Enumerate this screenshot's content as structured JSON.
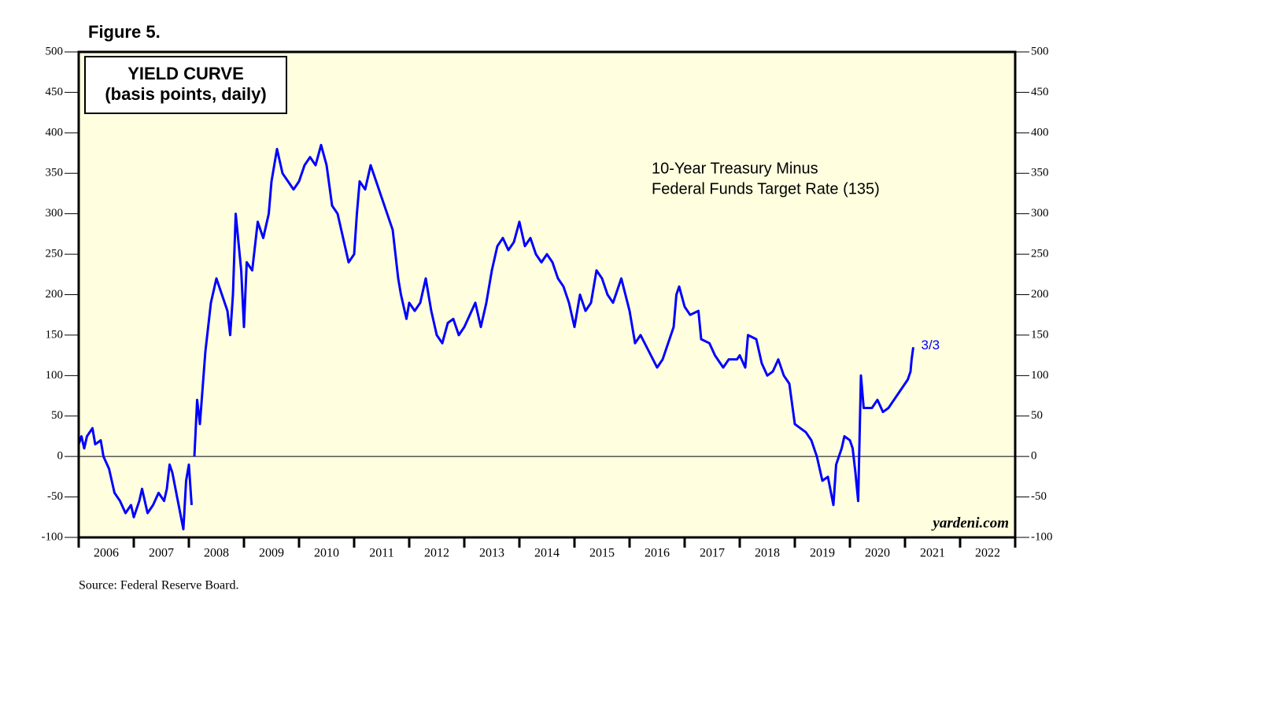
{
  "chart_data": {
    "type": "line",
    "figure_label": "Figure 5.",
    "title": "YIELD CURVE",
    "subtitle": "(basis points, daily)",
    "annotations": [
      "10-Year Treasury Minus",
      "Federal Funds Target Rate (135)"
    ],
    "end_label": "3/3",
    "watermark": "yardeni.com",
    "source": "Source: Federal Reserve Board.",
    "xlim": [
      2006,
      2023
    ],
    "xticks": [
      2006,
      2007,
      2008,
      2009,
      2010,
      2011,
      2012,
      2013,
      2014,
      2015,
      2016,
      2017,
      2018,
      2019,
      2020,
      2021,
      2022
    ],
    "ylim": [
      -100,
      500
    ],
    "yticks": [
      -100,
      -50,
      0,
      50,
      100,
      150,
      200,
      250,
      300,
      350,
      400,
      450,
      500
    ],
    "y2lim": [
      -100,
      500
    ],
    "y2ticks": [
      -100,
      -50,
      0,
      50,
      100,
      150,
      200,
      250,
      300,
      350,
      400,
      450,
      500
    ],
    "zero_line": true,
    "x": [
      2006.0,
      2006.05,
      2006.1,
      2006.15,
      2006.25,
      2006.3,
      2006.4,
      2006.45,
      2006.55,
      2006.65,
      2006.75,
      2006.85,
      2006.95,
      2007.0,
      2007.1,
      2007.15,
      2007.25,
      2007.35,
      2007.45,
      2007.55,
      2007.6,
      2007.65,
      2007.7,
      2007.8,
      2007.9,
      2007.95,
      2008.0,
      2008.05,
      2008.07,
      2008.1,
      2008.15,
      2008.2,
      2008.3,
      2008.4,
      2008.5,
      2008.6,
      2008.7,
      2008.75,
      2008.8,
      2008.85,
      2008.95,
      2009.0,
      2009.05,
      2009.15,
      2009.25,
      2009.35,
      2009.45,
      2009.5,
      2009.6,
      2009.7,
      2009.8,
      2009.9,
      2010.0,
      2010.1,
      2010.2,
      2010.3,
      2010.4,
      2010.5,
      2010.6,
      2010.7,
      2010.8,
      2010.9,
      2011.0,
      2011.05,
      2011.1,
      2011.2,
      2011.3,
      2011.4,
      2011.5,
      2011.6,
      2011.7,
      2011.8,
      2011.85,
      2011.95,
      2012.0,
      2012.1,
      2012.2,
      2012.3,
      2012.4,
      2012.5,
      2012.6,
      2012.7,
      2012.8,
      2012.9,
      2013.0,
      2013.1,
      2013.2,
      2013.3,
      2013.4,
      2013.5,
      2013.6,
      2013.7,
      2013.8,
      2013.9,
      2014.0,
      2014.1,
      2014.2,
      2014.3,
      2014.4,
      2014.5,
      2014.6,
      2014.7,
      2014.8,
      2014.9,
      2015.0,
      2015.1,
      2015.2,
      2015.3,
      2015.4,
      2015.5,
      2015.6,
      2015.7,
      2015.85,
      2016.0,
      2016.1,
      2016.2,
      2016.35,
      2016.5,
      2016.6,
      2016.7,
      2016.8,
      2016.85,
      2016.9,
      2017.0,
      2017.1,
      2017.25,
      2017.3,
      2017.45,
      2017.55,
      2017.7,
      2017.8,
      2017.95,
      2018.0,
      2018.1,
      2018.15,
      2018.3,
      2018.4,
      2018.5,
      2018.6,
      2018.7,
      2018.8,
      2018.9,
      2019.0,
      2019.1,
      2019.2,
      2019.3,
      2019.4,
      2019.5,
      2019.6,
      2019.7,
      2019.75,
      2019.85,
      2019.9,
      2020.0,
      2020.05,
      2020.1,
      2020.15,
      2020.2,
      2020.25,
      2020.4,
      2020.5,
      2020.6,
      2020.7,
      2020.8,
      2020.9,
      2021.0,
      2021.05,
      2021.1,
      2021.12,
      2021.15
    ],
    "series": [
      {
        "color": "#0000ff",
        "values": [
          15,
          25,
          10,
          25,
          35,
          15,
          20,
          0,
          -15,
          -45,
          -55,
          -70,
          -60,
          -75,
          -55,
          -40,
          -70,
          -60,
          -45,
          -55,
          -40,
          -10,
          -20,
          -55,
          -90,
          -30,
          -10,
          -60,
          null,
          0,
          70,
          40,
          130,
          190,
          220,
          200,
          180,
          150,
          200,
          300,
          230,
          160,
          240,
          230,
          290,
          270,
          300,
          340,
          380,
          350,
          340,
          330,
          340,
          360,
          370,
          360,
          385,
          360,
          310,
          300,
          270,
          240,
          250,
          300,
          340,
          330,
          360,
          340,
          320,
          300,
          280,
          220,
          200,
          170,
          190,
          180,
          190,
          220,
          180,
          150,
          140,
          165,
          170,
          150,
          160,
          175,
          190,
          160,
          190,
          230,
          260,
          270,
          255,
          265,
          290,
          260,
          270,
          250,
          240,
          250,
          240,
          220,
          210,
          190,
          160,
          200,
          180,
          190,
          230,
          220,
          200,
          190,
          220,
          180,
          140,
          150,
          130,
          110,
          120,
          140,
          160,
          200,
          210,
          185,
          175,
          180,
          145,
          140,
          125,
          110,
          120,
          120,
          125,
          110,
          150,
          145,
          115,
          100,
          105,
          120,
          100,
          90,
          40,
          35,
          30,
          20,
          0,
          -30,
          -25,
          -60,
          -10,
          10,
          25,
          20,
          10,
          -20,
          -55,
          100,
          60,
          60,
          70,
          55,
          60,
          70,
          80,
          90,
          95,
          105,
          120,
          135
        ]
      }
    ]
  }
}
